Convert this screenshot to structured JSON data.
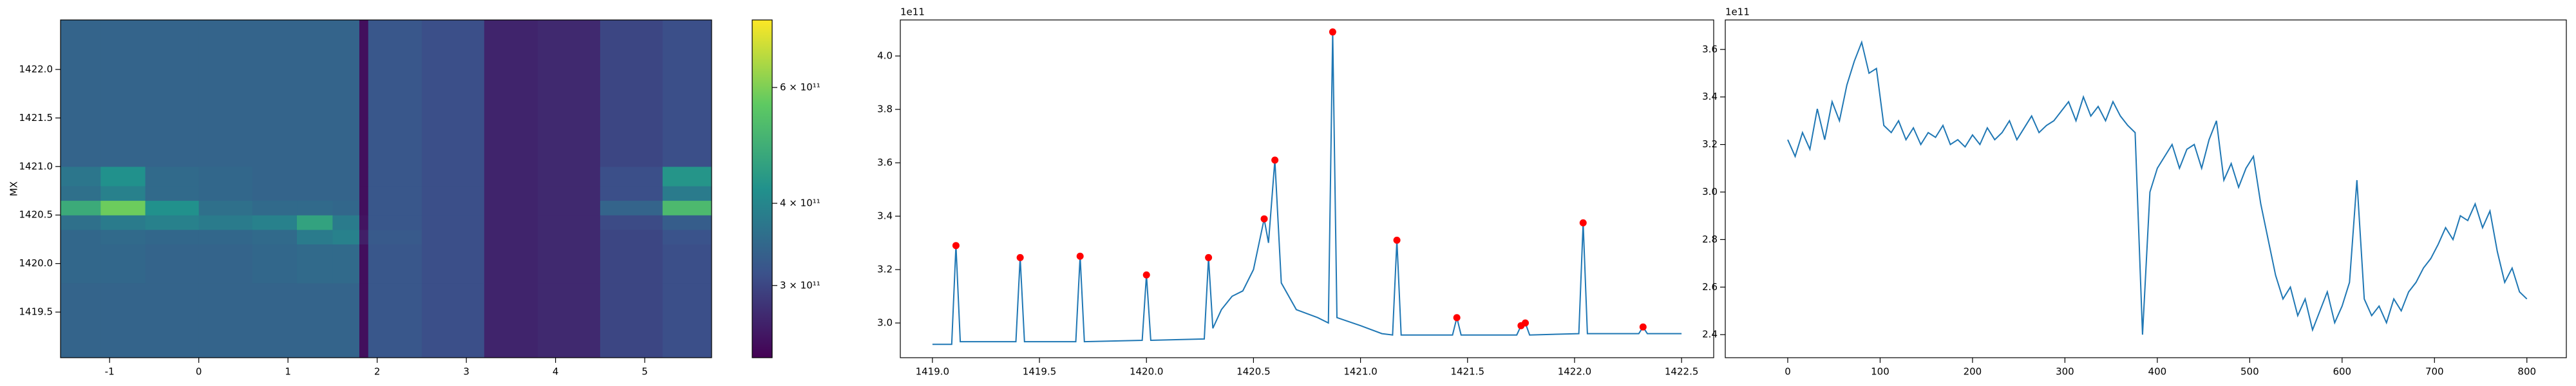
{
  "chart_data": [
    {
      "type": "heatmap",
      "ylabel": "MX",
      "x_edges": [
        -1.55,
        -1.1,
        -0.6,
        0,
        0.6,
        1.1,
        1.5,
        1.8,
        1.9,
        2.5,
        3.2,
        3.8,
        4.5,
        5.2,
        5.75
      ],
      "y_edges": [
        1419.03,
        1419.8,
        1420.2,
        1420.35,
        1420.5,
        1420.65,
        1420.8,
        1421.0,
        1421.5,
        1422.51
      ],
      "values": [
        [
          340000000000.0,
          340000000000.0,
          340000000000.0,
          340000000000.0,
          340000000000.0,
          340000000000.0,
          340000000000.0,
          245000000000.0,
          320000000000.0,
          310000000000.0,
          265000000000.0,
          270000000000.0,
          300000000000.0,
          310000000000.0
        ],
        [
          345000000000.0,
          345000000000.0,
          340000000000.0,
          340000000000.0,
          345000000000.0,
          350000000000.0,
          350000000000.0,
          245000000000.0,
          320000000000.0,
          310000000000.0,
          265000000000.0,
          270000000000.0,
          300000000000.0,
          310000000000.0
        ],
        [
          345000000000.0,
          350000000000.0,
          345000000000.0,
          345000000000.0,
          350000000000.0,
          380000000000.0,
          390000000000.0,
          260000000000.0,
          325000000000.0,
          310000000000.0,
          265000000000.0,
          270000000000.0,
          300000000000.0,
          315000000000.0
        ],
        [
          360000000000.0,
          380000000000.0,
          390000000000.0,
          380000000000.0,
          390000000000.0,
          460000000000.0,
          380000000000.0,
          250000000000.0,
          320000000000.0,
          310000000000.0,
          265000000000.0,
          270000000000.0,
          305000000000.0,
          330000000000.0
        ],
        [
          480000000000.0,
          580000000000.0,
          420000000000.0,
          360000000000.0,
          350000000000.0,
          350000000000.0,
          345000000000.0,
          245000000000.0,
          320000000000.0,
          310000000000.0,
          265000000000.0,
          270000000000.0,
          340000000000.0,
          520000000000.0
        ],
        [
          360000000000.0,
          390000000000.0,
          350000000000.0,
          345000000000.0,
          340000000000.0,
          340000000000.0,
          340000000000.0,
          245000000000.0,
          320000000000.0,
          310000000000.0,
          265000000000.0,
          270000000000.0,
          310000000000.0,
          380000000000.0
        ],
        [
          370000000000.0,
          420000000000.0,
          350000000000.0,
          345000000000.0,
          340000000000.0,
          340000000000.0,
          340000000000.0,
          245000000000.0,
          320000000000.0,
          310000000000.0,
          265000000000.0,
          270000000000.0,
          310000000000.0,
          430000000000.0
        ],
        [
          340000000000.0,
          340000000000.0,
          340000000000.0,
          340000000000.0,
          340000000000.0,
          340000000000.0,
          340000000000.0,
          245000000000.0,
          320000000000.0,
          310000000000.0,
          265000000000.0,
          270000000000.0,
          300000000000.0,
          310000000000.0
        ],
        [
          340000000000.0,
          340000000000.0,
          340000000000.0,
          340000000000.0,
          340000000000.0,
          340000000000.0,
          340000000000.0,
          245000000000.0,
          320000000000.0,
          310000000000.0,
          265000000000.0,
          270000000000.0,
          300000000000.0,
          310000000000.0
        ]
      ],
      "xlim": [
        -1.55,
        5.75
      ],
      "xticks": [
        -1,
        0,
        1,
        2,
        3,
        4,
        5
      ],
      "ylim": [
        1419.03,
        1422.51
      ],
      "yticks": [
        1419.5,
        {
          "value": 1420,
          "label": "1420.0"
        },
        1420.5,
        {
          "value": 1421,
          "label": "1421.0"
        },
        1421.5,
        {
          "value": 1422,
          "label": "1422.0"
        }
      ],
      "colormap": "viridis",
      "color_scale": "log",
      "clim": [
        233000000000.0,
        760000000000.0
      ],
      "cticks": [
        {
          "value": 300000000000.0,
          "label": "3 × 10¹¹"
        },
        {
          "value": 400000000000.0,
          "label": "4 × 10¹¹"
        },
        {
          "value": 600000000000.0,
          "label": "6 × 10¹¹"
        }
      ]
    },
    {
      "type": "line",
      "offset_label": "1e11",
      "color": "#1f77b4",
      "x": [
        1419.0,
        1419.09,
        1419.11,
        1419.13,
        1419.39,
        1419.41,
        1419.43,
        1419.67,
        1419.69,
        1419.71,
        1419.98,
        1420.0,
        1420.02,
        1420.27,
        1420.29,
        1420.31,
        1420.35,
        1420.4,
        1420.45,
        1420.5,
        1420.55,
        1420.57,
        1420.6,
        1420.63,
        1420.7,
        1420.8,
        1420.85,
        1420.87,
        1420.89,
        1421.0,
        1421.1,
        1421.15,
        1421.17,
        1421.19,
        1421.43,
        1421.45,
        1421.47,
        1421.73,
        1421.75,
        1421.77,
        1421.79,
        1422.02,
        1422.04,
        1422.06,
        1422.3,
        1422.32,
        1422.34,
        1422.5
      ],
      "values": [
        2.92,
        2.92,
        3.29,
        2.93,
        2.93,
        3.245,
        2.93,
        2.93,
        3.25,
        2.93,
        2.935,
        3.18,
        2.935,
        2.94,
        3.245,
        2.98,
        3.05,
        3.1,
        3.12,
        3.2,
        3.39,
        3.3,
        3.61,
        3.15,
        3.05,
        3.02,
        3.0,
        4.09,
        3.02,
        2.99,
        2.96,
        2.955,
        3.31,
        2.955,
        2.955,
        3.02,
        2.955,
        2.955,
        2.99,
        3.0,
        2.955,
        2.96,
        3.375,
        2.96,
        2.96,
        2.985,
        2.96,
        2.96
      ],
      "peaks": {
        "color": "#ff0000",
        "x": [
          1419.11,
          1419.41,
          1419.69,
          1420.0,
          1420.29,
          1420.55,
          1420.6,
          1420.87,
          1421.17,
          1421.45,
          1421.75,
          1421.77,
          1422.04,
          1422.32
        ],
        "values": [
          3.29,
          3.245,
          3.25,
          3.18,
          3.245,
          3.39,
          3.61,
          4.09,
          3.31,
          3.02,
          2.99,
          3.0,
          3.375,
          2.985
        ]
      },
      "xlim": [
        1418.85,
        1422.65
      ],
      "xticks": [
        {
          "value": 1419,
          "label": "1419.0"
        },
        1419.5,
        {
          "value": 1420,
          "label": "1420.0"
        },
        1420.5,
        {
          "value": 1421,
          "label": "1421.0"
        },
        1421.5,
        {
          "value": 1422,
          "label": "1422.0"
        },
        1422.5
      ],
      "ylim": [
        2.87,
        4.135
      ],
      "yticks": [
        {
          "value": 3,
          "label": "3.0"
        },
        3.2,
        3.4,
        3.6,
        3.8,
        {
          "value": 4,
          "label": "4.0"
        }
      ]
    },
    {
      "type": "line",
      "offset_label": "1e11",
      "color": "#1f77b4",
      "x": [
        0,
        8,
        16,
        24,
        32,
        40,
        48,
        56,
        64,
        72,
        80,
        88,
        96,
        104,
        112,
        120,
        128,
        136,
        144,
        152,
        160,
        168,
        176,
        184,
        192,
        200,
        208,
        216,
        224,
        232,
        240,
        248,
        256,
        264,
        272,
        280,
        288,
        296,
        304,
        312,
        320,
        328,
        336,
        344,
        352,
        360,
        368,
        376,
        384,
        392,
        400,
        408,
        416,
        424,
        432,
        440,
        448,
        456,
        464,
        472,
        480,
        488,
        496,
        504,
        512,
        520,
        528,
        536,
        544,
        552,
        560,
        568,
        576,
        584,
        592,
        600,
        608,
        616,
        624,
        632,
        640,
        648,
        656,
        664,
        672,
        680,
        688,
        696,
        704,
        712,
        720,
        728,
        736,
        744,
        752,
        760,
        768,
        776,
        784,
        792,
        800
      ],
      "values": [
        3.22,
        3.15,
        3.25,
        3.18,
        3.35,
        3.22,
        3.38,
        3.3,
        3.45,
        3.55,
        3.63,
        3.5,
        3.52,
        3.28,
        3.25,
        3.3,
        3.22,
        3.27,
        3.2,
        3.25,
        3.23,
        3.28,
        3.2,
        3.22,
        3.19,
        3.24,
        3.2,
        3.27,
        3.22,
        3.25,
        3.3,
        3.22,
        3.27,
        3.32,
        3.25,
        3.28,
        3.3,
        3.34,
        3.38,
        3.3,
        3.4,
        3.32,
        3.36,
        3.3,
        3.38,
        3.32,
        3.28,
        3.25,
        2.4,
        3.0,
        3.1,
        3.15,
        3.2,
        3.1,
        3.18,
        3.2,
        3.1,
        3.22,
        3.3,
        3.05,
        3.12,
        3.02,
        3.1,
        3.15,
        2.95,
        2.8,
        2.65,
        2.55,
        2.6,
        2.48,
        2.55,
        2.42,
        2.5,
        2.58,
        2.45,
        2.52,
        2.62,
        3.05,
        2.55,
        2.48,
        2.52,
        2.45,
        2.55,
        2.5,
        2.58,
        2.62,
        2.68,
        2.72,
        2.78,
        2.85,
        2.8,
        2.9,
        2.88,
        2.95,
        2.85,
        2.92,
        2.75,
        2.62,
        2.68,
        2.58,
        2.55
      ],
      "xlim": [
        -67.6,
        842.7
      ],
      "xticks": [
        0,
        100,
        200,
        300,
        400,
        500,
        600,
        700,
        800
      ],
      "ylim": [
        2.303,
        3.724
      ],
      "yticks": [
        2.4,
        2.6,
        2.8,
        {
          "value": 3,
          "label": "3.0"
        },
        3.2,
        3.4,
        3.6
      ]
    }
  ]
}
